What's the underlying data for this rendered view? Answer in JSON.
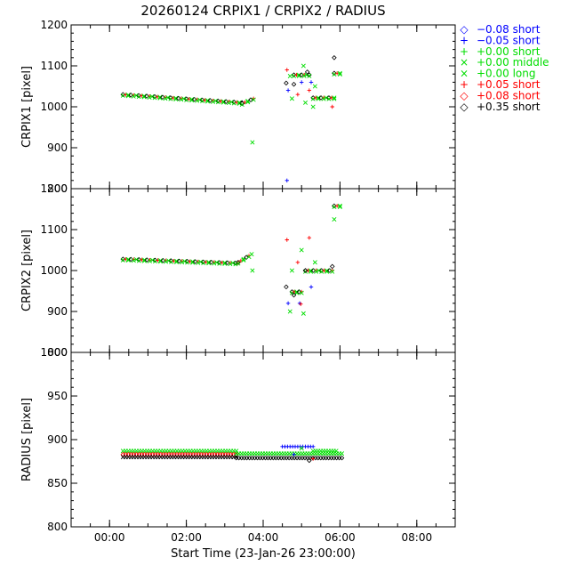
{
  "title": "20260124 CRPIX1 / CRPIX2 / RADIUS",
  "xlabel": "Start Time (23-Jan-26 23:00:00)",
  "x_ticks": [
    "00:00",
    "02:00",
    "04:00",
    "06:00",
    "08:00"
  ],
  "x_tick_hours": [
    0,
    2,
    4,
    6,
    8
  ],
  "xlim_hours": [
    -1,
    9
  ],
  "legend": [
    {
      "symbol": "◇",
      "label": "−0.08 short",
      "color": "#0000ff"
    },
    {
      "symbol": "+",
      "label": "−0.05 short",
      "color": "#0000ff"
    },
    {
      "symbol": "+",
      "label": "+0.00 short",
      "color": "#00dd00"
    },
    {
      "symbol": "×",
      "label": "+0.00 middle",
      "color": "#00dd00"
    },
    {
      "symbol": "×",
      "label": "+0.00 long",
      "color": "#00dd00"
    },
    {
      "symbol": "+",
      "label": "+0.05 short",
      "color": "#ff0000"
    },
    {
      "symbol": "◇",
      "label": "+0.08 short",
      "color": "#ff0000"
    },
    {
      "symbol": "◇",
      "label": "+0.35 short",
      "color": "#000000"
    }
  ],
  "chart_data": [
    {
      "type": "scatter",
      "ylabel": "CRPIX1 [pixel]",
      "ylim": [
        800,
        1200
      ],
      "y_ticks": [
        800,
        900,
        1000,
        1100,
        1200
      ],
      "segments": [
        {
          "x": [
            0.35,
            3.45
          ],
          "y": [
            1030,
            1010
          ]
        },
        {
          "x": [
            3.45,
            3.75
          ],
          "y": [
            1008,
            1020
          ]
        },
        {
          "x": [
            4.8,
            5.2
          ],
          "y": [
            1078,
            1078
          ]
        },
        {
          "x": [
            5.3,
            5.85
          ],
          "y": [
            1022,
            1022
          ]
        },
        {
          "x": [
            5.85,
            6.0
          ],
          "y": [
            1082,
            1082
          ]
        }
      ],
      "points": [
        {
          "x": 3.72,
          "y": 913
        },
        {
          "x": 4.6,
          "y": 1058
        },
        {
          "x": 4.62,
          "y": 1090
        },
        {
          "x": 4.65,
          "y": 1040
        },
        {
          "x": 4.7,
          "y": 1075
        },
        {
          "x": 4.75,
          "y": 1020
        },
        {
          "x": 4.8,
          "y": 1055
        },
        {
          "x": 4.9,
          "y": 1030
        },
        {
          "x": 5.0,
          "y": 1060
        },
        {
          "x": 5.05,
          "y": 1100
        },
        {
          "x": 5.1,
          "y": 1010
        },
        {
          "x": 5.15,
          "y": 1085
        },
        {
          "x": 5.2,
          "y": 1040
        },
        {
          "x": 5.25,
          "y": 1060
        },
        {
          "x": 5.3,
          "y": 1000
        },
        {
          "x": 5.35,
          "y": 1050
        },
        {
          "x": 5.85,
          "y": 1120
        },
        {
          "x": 5.8,
          "y": 1000
        },
        {
          "x": 4.62,
          "y": 820
        }
      ]
    },
    {
      "type": "scatter",
      "ylabel": "CRPIX2 [pixel]",
      "ylim": [
        800,
        1200
      ],
      "y_ticks": [
        800,
        900,
        1000,
        1100,
        1200
      ],
      "segments": [
        {
          "x": [
            0.35,
            3.35
          ],
          "y": [
            1028,
            1018
          ]
        },
        {
          "x": [
            3.35,
            3.7
          ],
          "y": [
            1020,
            1040
          ]
        },
        {
          "x": [
            4.75,
            5.0
          ],
          "y": [
            948,
            948
          ]
        },
        {
          "x": [
            5.1,
            5.8
          ],
          "y": [
            1000,
            1000
          ]
        },
        {
          "x": [
            5.85,
            6.0
          ],
          "y": [
            1158,
            1158
          ]
        }
      ],
      "points": [
        {
          "x": 3.72,
          "y": 1000
        },
        {
          "x": 4.6,
          "y": 960
        },
        {
          "x": 4.62,
          "y": 1075
        },
        {
          "x": 4.65,
          "y": 920
        },
        {
          "x": 4.7,
          "y": 900
        },
        {
          "x": 4.75,
          "y": 1000
        },
        {
          "x": 4.8,
          "y": 940
        },
        {
          "x": 4.9,
          "y": 1020
        },
        {
          "x": 4.95,
          "y": 920
        },
        {
          "x": 5.0,
          "y": 1050
        },
        {
          "x": 5.05,
          "y": 895
        },
        {
          "x": 5.1,
          "y": 1000
        },
        {
          "x": 5.2,
          "y": 1080
        },
        {
          "x": 5.25,
          "y": 960
        },
        {
          "x": 5.35,
          "y": 1020
        },
        {
          "x": 5.85,
          "y": 1125
        },
        {
          "x": 5.8,
          "y": 1010
        },
        {
          "x": 4.98,
          "y": 918
        }
      ]
    },
    {
      "type": "scatter",
      "ylabel": "RADIUS [pixel]",
      "ylim": [
        800,
        1000
      ],
      "y_ticks": [
        800,
        850,
        900,
        950,
        1000
      ],
      "segments": [
        {
          "x": [
            0.35,
            3.3
          ],
          "y": [
            887,
            887
          ]
        },
        {
          "x": [
            0.35,
            3.3
          ],
          "y": [
            883,
            883
          ]
        },
        {
          "x": [
            0.35,
            3.3
          ],
          "y": [
            880,
            880
          ]
        },
        {
          "x": [
            3.3,
            6.05
          ],
          "y": [
            879,
            879
          ]
        },
        {
          "x": [
            3.3,
            6.05
          ],
          "y": [
            884,
            884
          ]
        },
        {
          "x": [
            4.5,
            5.3
          ],
          "y": [
            892,
            892
          ]
        },
        {
          "x": [
            5.3,
            5.9
          ],
          "y": [
            887,
            887
          ]
        }
      ],
      "points": [
        {
          "x": 5.0,
          "y": 890
        },
        {
          "x": 5.2,
          "y": 876
        },
        {
          "x": 5.3,
          "y": 878
        },
        {
          "x": 4.8,
          "y": 883
        }
      ]
    }
  ]
}
